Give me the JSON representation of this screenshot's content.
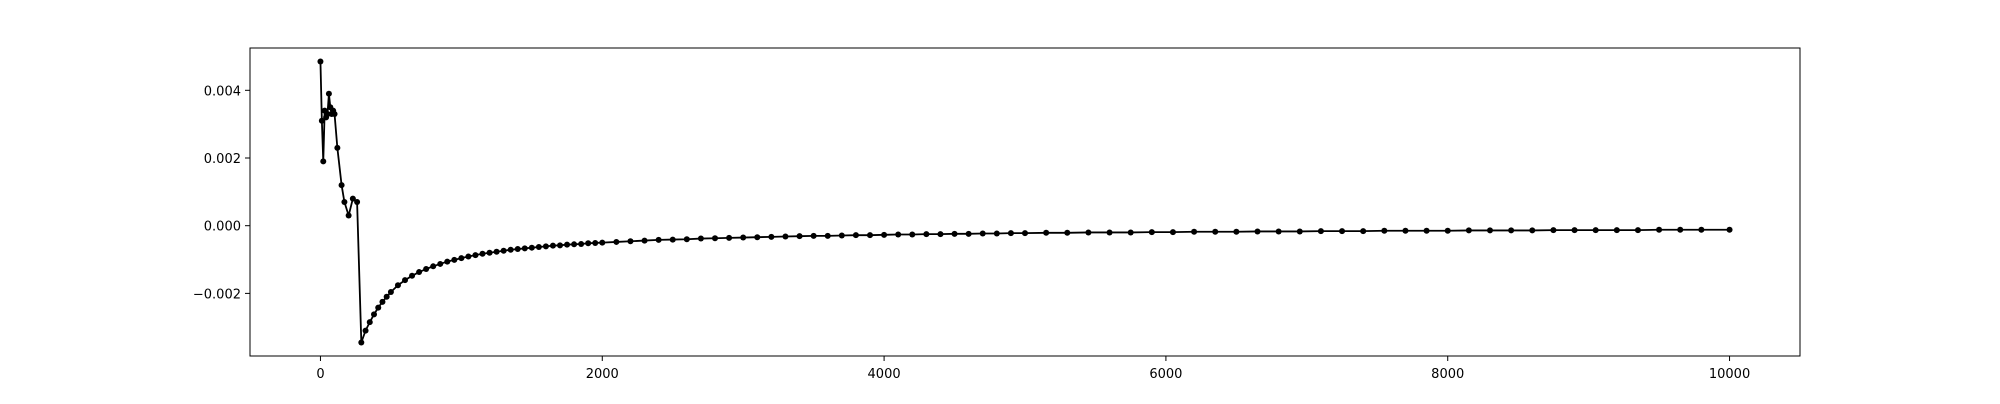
{
  "chart_data": {
    "type": "line",
    "title": "",
    "xlabel": "",
    "ylabel": "",
    "xlim": [
      -500,
      10500
    ],
    "ylim": [
      -0.00385,
      0.00525
    ],
    "x_ticks": [
      {
        "value": 0,
        "label": "0"
      },
      {
        "value": 2000,
        "label": "2000"
      },
      {
        "value": 4000,
        "label": "4000"
      },
      {
        "value": 6000,
        "label": "6000"
      },
      {
        "value": 8000,
        "label": "8000"
      },
      {
        "value": 10000,
        "label": "10000"
      }
    ],
    "y_ticks": [
      {
        "value": -0.002,
        "label": "−0.002"
      },
      {
        "value": 0.0,
        "label": "0.000"
      },
      {
        "value": 0.002,
        "label": "0.002"
      },
      {
        "value": 0.004,
        "label": "0.004"
      }
    ],
    "grid": false,
    "legend": false,
    "series": [
      {
        "color": "#000000",
        "marker": "dot",
        "x": [
          0,
          10,
          20,
          30,
          40,
          50,
          60,
          70,
          80,
          90,
          100,
          120,
          150,
          170,
          200,
          230,
          260,
          290,
          320,
          350,
          380,
          410,
          440,
          470,
          500,
          550,
          600,
          650,
          700,
          750,
          800,
          850,
          900,
          950,
          1000,
          1050,
          1100,
          1150,
          1200,
          1250,
          1300,
          1350,
          1400,
          1450,
          1500,
          1550,
          1600,
          1650,
          1700,
          1750,
          1800,
          1850,
          1900,
          1950,
          2000,
          2100,
          2200,
          2300,
          2400,
          2500,
          2600,
          2700,
          2800,
          2900,
          3000,
          3100,
          3200,
          3300,
          3400,
          3500,
          3600,
          3700,
          3800,
          3900,
          4000,
          4100,
          4200,
          4300,
          4400,
          4500,
          4600,
          4700,
          4800,
          4900,
          5000,
          5150,
          5300,
          5450,
          5600,
          5750,
          5900,
          6050,
          6200,
          6350,
          6500,
          6650,
          6800,
          6950,
          7100,
          7250,
          7400,
          7550,
          7700,
          7850,
          8000,
          8150,
          8300,
          8450,
          8600,
          8750,
          8900,
          9050,
          9200,
          9350,
          9500,
          9650,
          9800,
          10000
        ],
        "y": [
          0.00485,
          0.0031,
          0.0019,
          0.0034,
          0.0032,
          0.0033,
          0.0039,
          0.0035,
          0.0033,
          0.0034,
          0.0033,
          0.0023,
          0.0012,
          0.0007,
          0.0003,
          0.0008,
          0.0007,
          -0.00345,
          -0.0031,
          -0.00285,
          -0.00262,
          -0.00242,
          -0.00225,
          -0.0021,
          -0.00196,
          -0.00176,
          -0.00161,
          -0.00148,
          -0.00137,
          -0.00128,
          -0.0012,
          -0.00113,
          -0.00106,
          -0.00101,
          -0.00096,
          -0.00091,
          -0.00087,
          -0.00083,
          -0.0008,
          -0.00077,
          -0.00074,
          -0.00071,
          -0.00069,
          -0.00067,
          -0.00065,
          -0.00063,
          -0.00061,
          -0.00059,
          -0.00058,
          -0.00056,
          -0.00055,
          -0.00054,
          -0.00052,
          -0.00051,
          -0.0005,
          -0.00048,
          -0.00046,
          -0.00044,
          -0.00042,
          -0.00041,
          -0.0004,
          -0.00038,
          -0.00037,
          -0.00036,
          -0.00035,
          -0.00034,
          -0.00033,
          -0.00032,
          -0.00031,
          -0.0003,
          -0.0003,
          -0.00029,
          -0.00028,
          -0.00028,
          -0.00027,
          -0.00026,
          -0.00026,
          -0.00025,
          -0.00025,
          -0.00024,
          -0.00024,
          -0.00023,
          -0.00023,
          -0.00022,
          -0.00022,
          -0.00021,
          -0.00021,
          -0.0002,
          -0.0002,
          -0.0002,
          -0.00019,
          -0.00019,
          -0.00018,
          -0.00018,
          -0.00018,
          -0.00017,
          -0.00017,
          -0.00017,
          -0.00016,
          -0.00016,
          -0.00016,
          -0.00015,
          -0.00015,
          -0.00015,
          -0.00015,
          -0.00014,
          -0.00014,
          -0.00014,
          -0.00014,
          -0.00013,
          -0.00013,
          -0.00013,
          -0.00013,
          -0.00013,
          -0.00012,
          -0.00012,
          -0.00012,
          -0.00012
        ]
      }
    ]
  }
}
